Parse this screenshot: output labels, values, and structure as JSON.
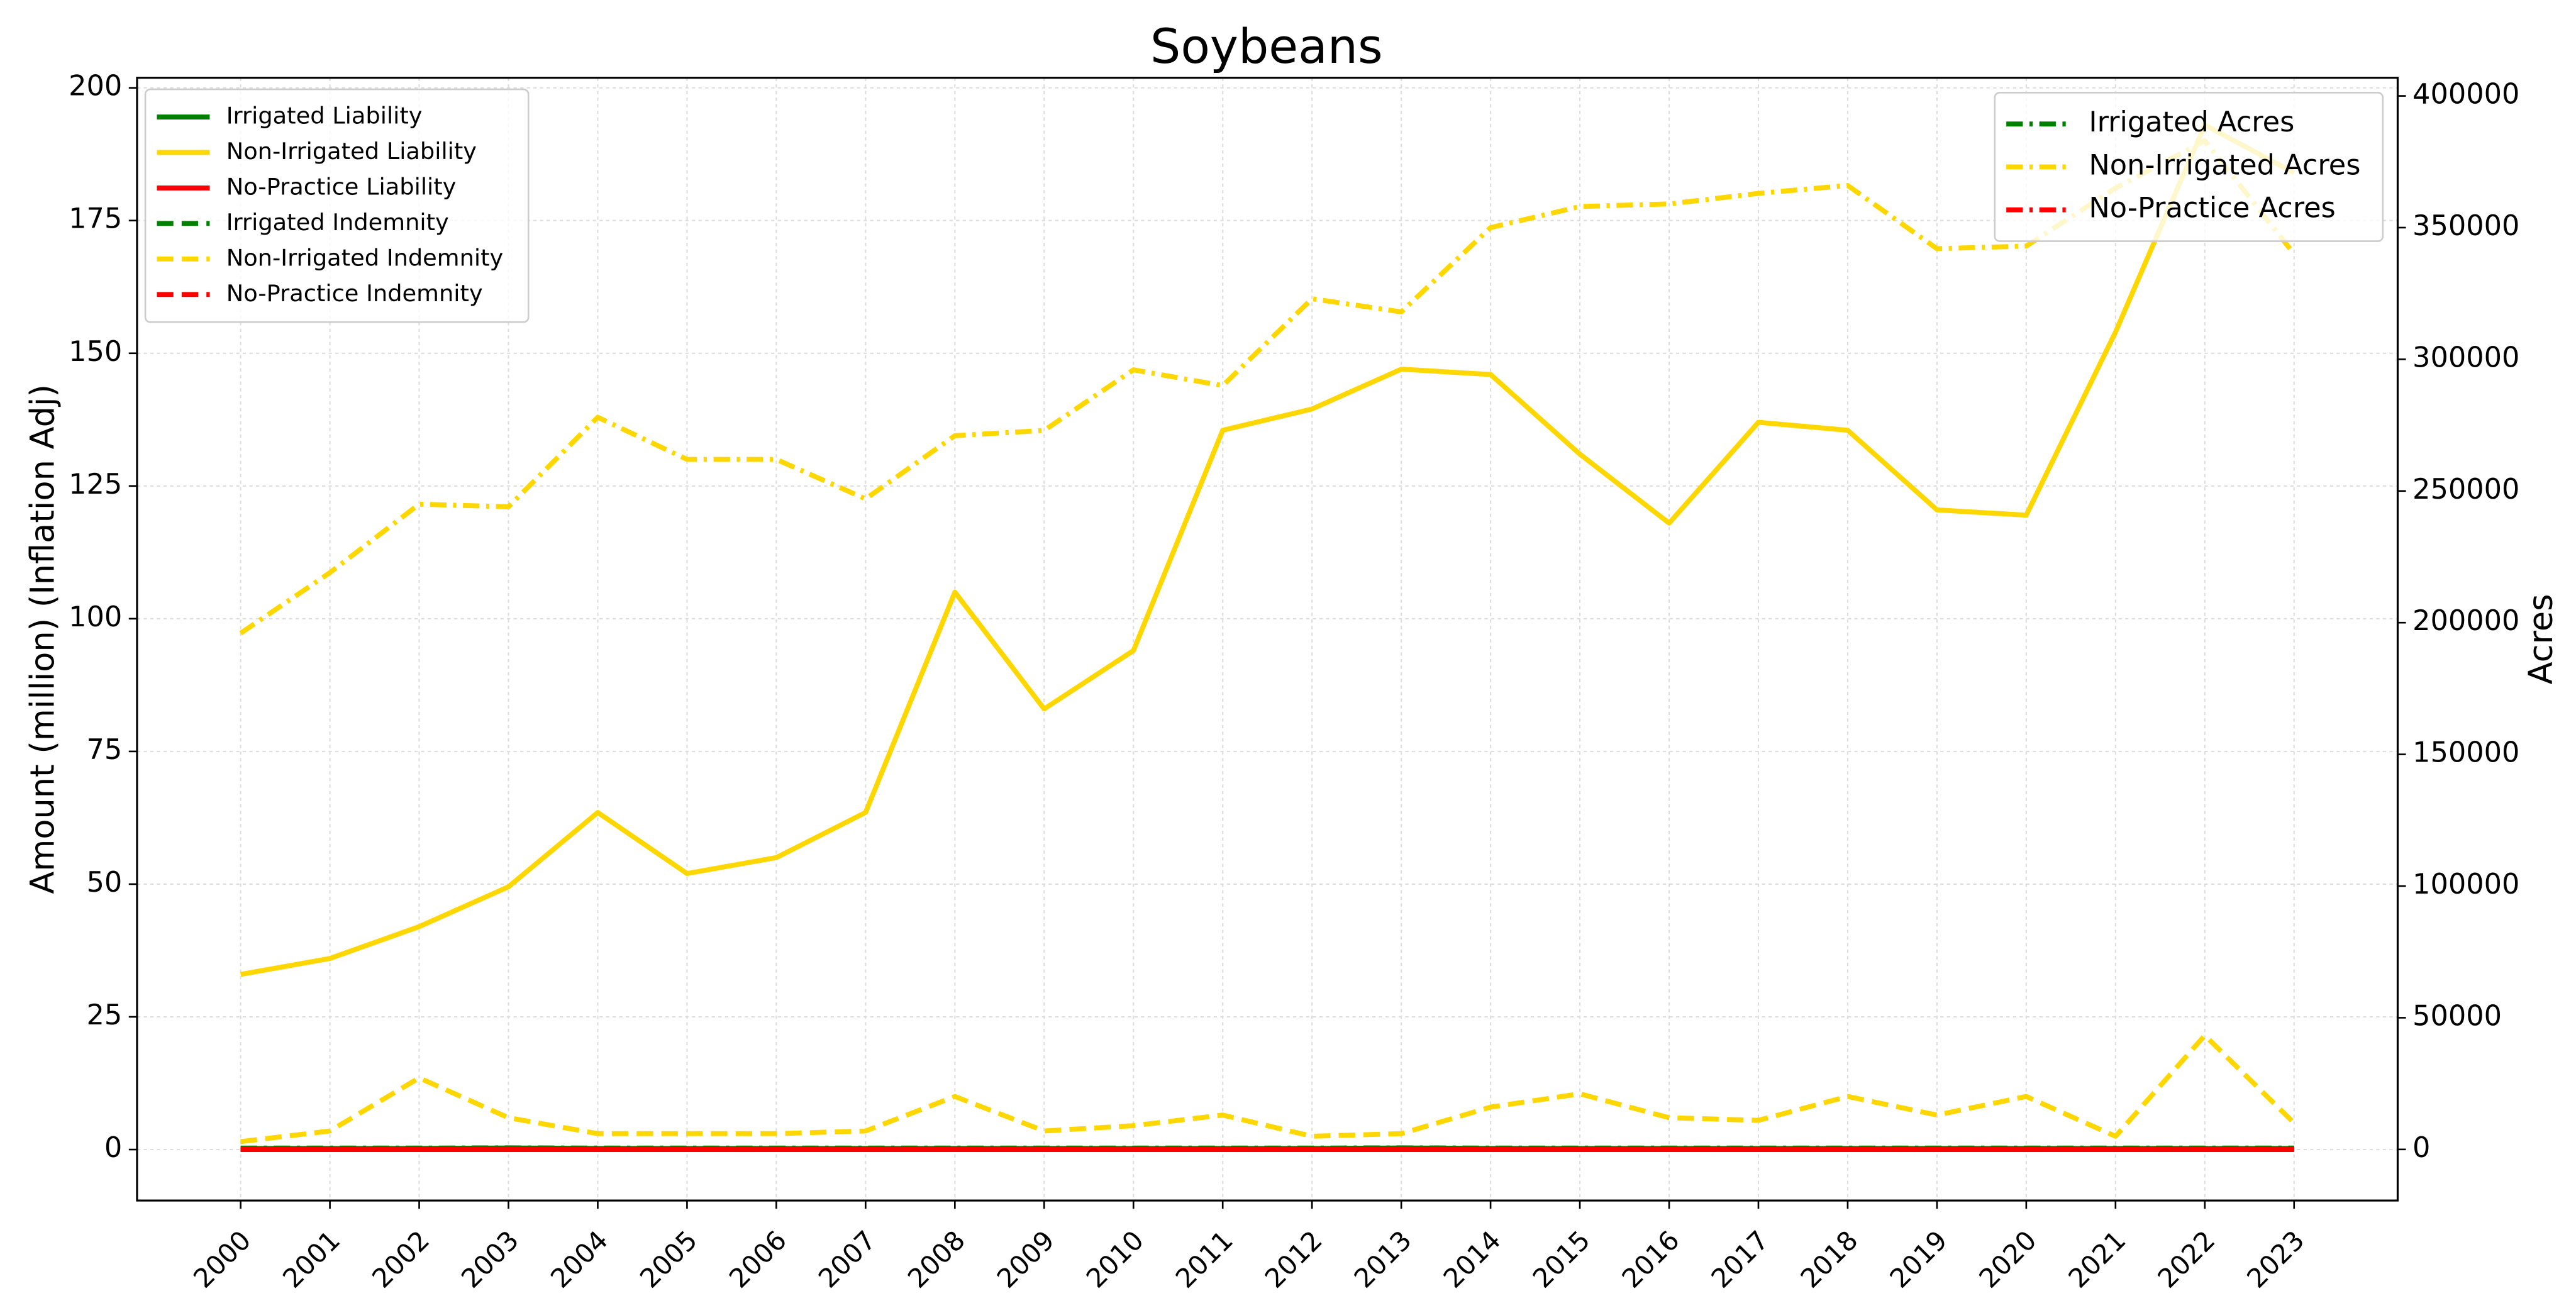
{
  "chart_data": {
    "type": "line",
    "title": "Soybeans",
    "ylabel": "Amount (million) (Inflation Adj)",
    "y2label": "Acres",
    "x": [
      2000,
      2001,
      2002,
      2003,
      2004,
      2005,
      2006,
      2007,
      2008,
      2009,
      2010,
      2011,
      2012,
      2013,
      2014,
      2015,
      2016,
      2017,
      2018,
      2019,
      2020,
      2021,
      2022,
      2023
    ],
    "xlim": [
      1998.84,
      2024.16
    ],
    "xticks": [
      2000,
      2001,
      2002,
      2003,
      2004,
      2005,
      2006,
      2007,
      2008,
      2009,
      2010,
      2011,
      2012,
      2013,
      2014,
      2015,
      2016,
      2017,
      2018,
      2019,
      2020,
      2021,
      2022,
      2023
    ],
    "ylim": [
      -9.6,
      201.9
    ],
    "yticks": [
      0,
      25,
      50,
      75,
      100,
      125,
      150,
      175,
      200
    ],
    "y2lim": [
      -19400,
      406900
    ],
    "y2ticks": [
      0,
      50000,
      100000,
      150000,
      200000,
      250000,
      300000,
      350000,
      400000
    ],
    "grid": true,
    "legend": "upper left",
    "y2_legend": "upper right",
    "series": [
      {
        "name": "Irrigated Liability",
        "color": "#008000",
        "style": "solid",
        "axis": "y",
        "values": [
          0.2,
          0.2,
          0.2,
          0.3,
          0.2,
          0.2,
          0.2,
          0.2,
          0.2,
          0.2,
          0.2,
          0.2,
          0.2,
          0.3,
          0.2,
          0.2,
          0.2,
          0.2,
          0.2,
          0.2,
          0.2,
          0.2,
          0.2,
          0.2
        ]
      },
      {
        "name": "Non-Irrigated Liability",
        "color": "#ffd700",
        "style": "solid",
        "axis": "y",
        "values": [
          33,
          36,
          42,
          49.5,
          63.5,
          52,
          55,
          63.5,
          105,
          83,
          94,
          135.5,
          139.5,
          147,
          146,
          131,
          118,
          137,
          135.5,
          120.5,
          119.5,
          154,
          193,
          184
        ]
      },
      {
        "name": "No-Practice Liability",
        "color": "#ff0000",
        "style": "solid",
        "axis": "y",
        "values": [
          0,
          0,
          0,
          0,
          0,
          0,
          0,
          0,
          0,
          0,
          0,
          0,
          0,
          0,
          0,
          0,
          0,
          0,
          0,
          0,
          0,
          0,
          0,
          0
        ]
      },
      {
        "name": "Irrigated Indemnity",
        "color": "#008000",
        "style": "dashed",
        "axis": "y",
        "values": [
          0,
          0,
          0,
          0,
          0,
          0,
          0,
          0,
          0,
          0,
          0,
          0,
          0,
          0,
          0,
          0,
          0,
          0,
          0,
          0,
          0,
          0,
          0,
          0
        ]
      },
      {
        "name": "Non-Irrigated Indemnity",
        "color": "#ffd700",
        "style": "dashed",
        "axis": "y",
        "values": [
          1.5,
          3.5,
          13.5,
          6,
          3,
          3,
          3,
          3.5,
          10,
          3.5,
          4.5,
          6.5,
          2.5,
          3,
          8,
          10.5,
          6,
          5.5,
          10,
          6.5,
          10,
          2.5,
          21.5,
          5
        ]
      },
      {
        "name": "No-Practice Indemnity",
        "color": "#ff0000",
        "style": "dashed",
        "axis": "y",
        "values": [
          0,
          0,
          0,
          0,
          0,
          0,
          0,
          0,
          0,
          0,
          0,
          0,
          0,
          0,
          0,
          0,
          0,
          0,
          0,
          0,
          0,
          0,
          0,
          0
        ]
      },
      {
        "name": "Irrigated Acres",
        "color": "#008000",
        "style": "dashdot",
        "axis": "y2",
        "values": [
          500,
          500,
          500,
          600,
          500,
          500,
          500,
          500,
          500,
          500,
          500,
          500,
          500,
          600,
          500,
          500,
          500,
          500,
          500,
          500,
          500,
          500,
          500,
          500
        ]
      },
      {
        "name": "Non-Irrigated Acres",
        "color": "#ffd700",
        "style": "dashdot",
        "axis": "y2",
        "values": [
          196000,
          219000,
          245000,
          244000,
          278000,
          262000,
          262000,
          247000,
          271000,
          273000,
          296000,
          290000,
          323000,
          318000,
          350000,
          358000,
          359000,
          363000,
          366000,
          342000,
          343000,
          365000,
          383000,
          340000
        ]
      },
      {
        "name": "No-Practice Acres",
        "color": "#ff0000",
        "style": "dashdot",
        "axis": "y2",
        "values": [
          0,
          0,
          0,
          0,
          0,
          0,
          0,
          0,
          0,
          0,
          0,
          0,
          0,
          0,
          0,
          0,
          0,
          0,
          0,
          0,
          0,
          0,
          0,
          0
        ]
      }
    ]
  }
}
